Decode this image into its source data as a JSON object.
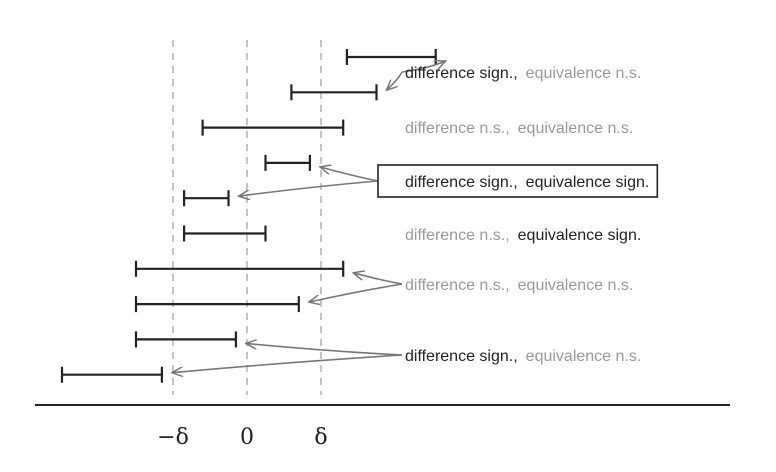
{
  "colors": {
    "dark": "#222222",
    "gray": "#999999",
    "dash": "#b5b5b5",
    "arrow": "#777777"
  },
  "axis": {
    "ticks": [
      {
        "label": "−δ",
        "value": -1
      },
      {
        "label": "0",
        "value": 0
      },
      {
        "label": "δ",
        "value": 1
      }
    ]
  },
  "intervals": [
    {
      "low": 1.35,
      "high": 2.55
    },
    {
      "low": 0.6,
      "high": 1.75
    },
    {
      "low": -0.6,
      "high": 1.3
    },
    {
      "low": 0.25,
      "high": 0.85
    },
    {
      "low": -0.85,
      "high": -0.25
    },
    {
      "low": -0.85,
      "high": 0.25
    },
    {
      "low": -1.5,
      "high": 1.3
    },
    {
      "low": -1.5,
      "high": 0.7
    },
    {
      "low": -1.5,
      "high": -0.15
    },
    {
      "low": -2.5,
      "high": -1.15
    }
  ],
  "annotations": [
    {
      "difference": "difference sign.,",
      "equivalence": "equivalence n.s.",
      "difference_dark": true,
      "equivalence_dark": false,
      "boxed": false,
      "targets": [
        0,
        1
      ]
    },
    {
      "difference": "difference n.s.,",
      "equivalence": "equivalence n.s.",
      "difference_dark": false,
      "equivalence_dark": false,
      "boxed": false,
      "targets": []
    },
    {
      "difference": "difference sign.,",
      "equivalence": "equivalence sign.",
      "difference_dark": true,
      "equivalence_dark": true,
      "boxed": true,
      "targets": [
        3,
        4
      ]
    },
    {
      "difference": "difference n.s.,",
      "equivalence": "equivalence sign.",
      "difference_dark": false,
      "equivalence_dark": true,
      "boxed": false,
      "targets": []
    },
    {
      "difference": "difference n.s.,",
      "equivalence": "equivalence n.s.",
      "difference_dark": false,
      "equivalence_dark": false,
      "boxed": false,
      "targets": [
        6,
        7
      ]
    },
    {
      "difference": "difference sign.,",
      "equivalence": "equivalence n.s.",
      "difference_dark": true,
      "equivalence_dark": false,
      "boxed": false,
      "targets": [
        8,
        9
      ]
    }
  ]
}
